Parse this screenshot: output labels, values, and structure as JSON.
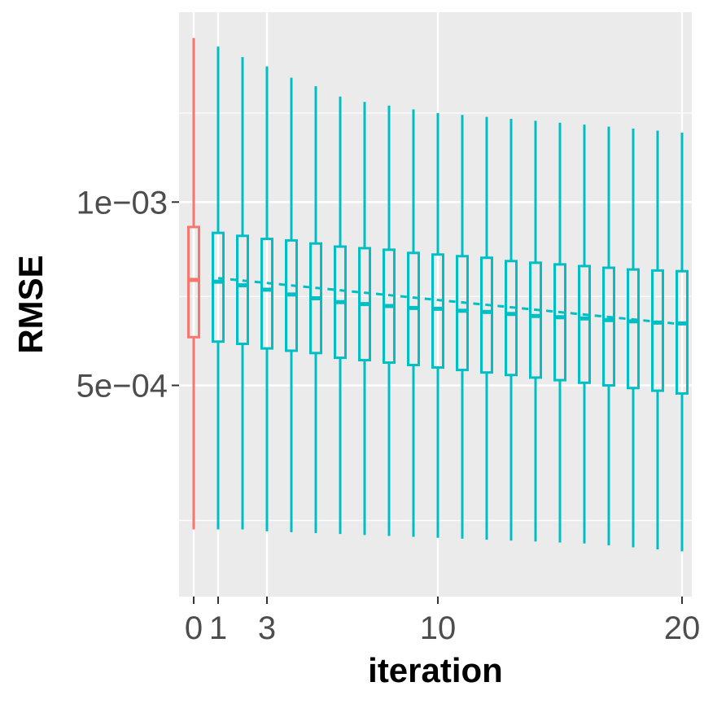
{
  "chart_data": {
    "type": "boxplot",
    "xlabel": "iteration",
    "ylabel": "RMSE",
    "y_scale": "log10",
    "ylim": [
      0.000225,
      0.00205
    ],
    "xlim": [
      -0.6,
      20.4
    ],
    "x_ticks": [
      0,
      1,
      3,
      10,
      20
    ],
    "x_tick_labels": [
      "0",
      "1",
      "3",
      "10",
      "20"
    ],
    "y_ticks": [
      0.0005,
      0.001
    ],
    "y_tick_labels": [
      "5e−04",
      "1e−03"
    ],
    "y_minor_gridlines": [
      0.0003,
      0.0007,
      0.0014
    ],
    "grid": true,
    "legend": "none",
    "colors": {
      "initial": "#F8766D",
      "iterated": "#00BFC4",
      "panel": "#EBEBEB",
      "grid": "#FFFFFF"
    },
    "boxes": [
      {
        "iteration": 0,
        "group": "initial",
        "min": 0.00029,
        "q1": 0.0006,
        "median": 0.000745,
        "q3": 0.00091,
        "max": 0.00186
      },
      {
        "iteration": 1,
        "group": "iterated",
        "min": 0.00029,
        "q1": 0.00059,
        "median": 0.00074,
        "q3": 0.00089,
        "max": 0.0018
      },
      {
        "iteration": 2,
        "group": "iterated",
        "min": 0.00029,
        "q1": 0.000585,
        "median": 0.00073,
        "q3": 0.00088,
        "max": 0.00173
      },
      {
        "iteration": 3,
        "group": "iterated",
        "min": 0.000288,
        "q1": 0.000575,
        "median": 0.000718,
        "q3": 0.00087,
        "max": 0.00167
      },
      {
        "iteration": 4,
        "group": "iterated",
        "min": 0.000287,
        "q1": 0.00057,
        "median": 0.000705,
        "q3": 0.000865,
        "max": 0.0016
      },
      {
        "iteration": 5,
        "group": "iterated",
        "min": 0.000286,
        "q1": 0.000565,
        "median": 0.000695,
        "q3": 0.000855,
        "max": 0.00155
      },
      {
        "iteration": 6,
        "group": "iterated",
        "min": 0.000285,
        "q1": 0.000555,
        "median": 0.000685,
        "q3": 0.000845,
        "max": 0.00149
      },
      {
        "iteration": 7,
        "group": "iterated",
        "min": 0.000284,
        "q1": 0.00055,
        "median": 0.00068,
        "q3": 0.00084,
        "max": 0.00146
      },
      {
        "iteration": 8,
        "group": "iterated",
        "min": 0.000283,
        "q1": 0.000545,
        "median": 0.000675,
        "q3": 0.000835,
        "max": 0.00144
      },
      {
        "iteration": 9,
        "group": "iterated",
        "min": 0.000282,
        "q1": 0.00054,
        "median": 0.00067,
        "q3": 0.000825,
        "max": 0.00142
      },
      {
        "iteration": 10,
        "group": "iterated",
        "min": 0.000281,
        "q1": 0.000535,
        "median": 0.000668,
        "q3": 0.00082,
        "max": 0.0014
      },
      {
        "iteration": 11,
        "group": "iterated",
        "min": 0.00028,
        "q1": 0.00053,
        "median": 0.000663,
        "q3": 0.000815,
        "max": 0.00139
      },
      {
        "iteration": 12,
        "group": "iterated",
        "min": 0.000279,
        "q1": 0.000525,
        "median": 0.00066,
        "q3": 0.00081,
        "max": 0.00138
      },
      {
        "iteration": 13,
        "group": "iterated",
        "min": 0.000278,
        "q1": 0.00052,
        "median": 0.000655,
        "q3": 0.0008,
        "max": 0.00137
      },
      {
        "iteration": 14,
        "group": "iterated",
        "min": 0.000277,
        "q1": 0.000515,
        "median": 0.00065,
        "q3": 0.000795,
        "max": 0.00136
      },
      {
        "iteration": 15,
        "group": "iterated",
        "min": 0.000276,
        "q1": 0.00051,
        "median": 0.000647,
        "q3": 0.00079,
        "max": 0.00135
      },
      {
        "iteration": 16,
        "group": "iterated",
        "min": 0.000275,
        "q1": 0.000505,
        "median": 0.000644,
        "q3": 0.000785,
        "max": 0.00134
      },
      {
        "iteration": 17,
        "group": "iterated",
        "min": 0.000273,
        "q1": 0.0005,
        "median": 0.00064,
        "q3": 0.00078,
        "max": 0.00133
      },
      {
        "iteration": 18,
        "group": "iterated",
        "min": 0.000271,
        "q1": 0.000495,
        "median": 0.000637,
        "q3": 0.000775,
        "max": 0.00132
      },
      {
        "iteration": 19,
        "group": "iterated",
        "min": 0.000269,
        "q1": 0.00049,
        "median": 0.000634,
        "q3": 0.000772,
        "max": 0.00131
      },
      {
        "iteration": 20,
        "group": "iterated",
        "min": 0.000267,
        "q1": 0.000485,
        "median": 0.000632,
        "q3": 0.00077,
        "max": 0.0013
      }
    ],
    "trend_line": {
      "style": "dashed",
      "group": "iterated",
      "x": [
        1,
        20
      ],
      "y": [
        0.00075,
        0.00063
      ]
    }
  }
}
